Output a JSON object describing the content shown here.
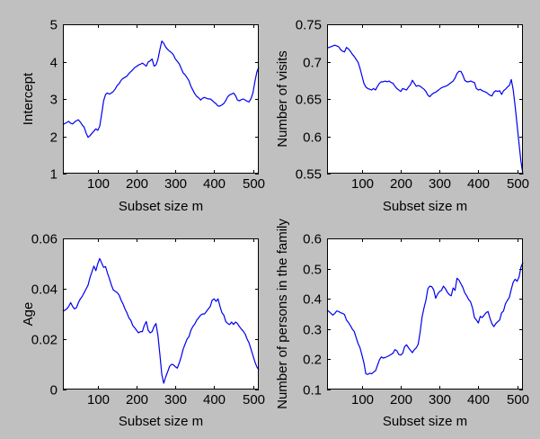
{
  "figure": {
    "background_color": "#c0c0c0",
    "plot_background_color": "#ffffff",
    "axis_color": "#000000",
    "line_color": "#0000ee",
    "text_color": "#000000"
  },
  "chart_data": [
    {
      "id": "intercept",
      "type": "line",
      "title": "",
      "xlabel": "Subset size m",
      "ylabel": "Intercept",
      "xlim": [
        10,
        515
      ],
      "ylim": [
        1,
        5
      ],
      "xticks": [
        100,
        200,
        300,
        400,
        500
      ],
      "xtick_labels": [
        "100",
        "200",
        "300",
        "400",
        "500"
      ],
      "yticks": [
        1,
        2,
        3,
        4,
        5
      ],
      "ytick_labels": [
        "1",
        "2",
        "3",
        "4",
        "5"
      ],
      "grid": false,
      "x": [
        10,
        15,
        20,
        25,
        30,
        35,
        40,
        45,
        50,
        55,
        60,
        65,
        70,
        75,
        80,
        85,
        90,
        95,
        100,
        105,
        110,
        115,
        120,
        125,
        130,
        135,
        140,
        145,
        150,
        155,
        160,
        165,
        170,
        175,
        180,
        185,
        190,
        195,
        200,
        205,
        210,
        215,
        220,
        225,
        230,
        235,
        240,
        245,
        250,
        255,
        260,
        265,
        270,
        275,
        280,
        285,
        290,
        295,
        300,
        305,
        310,
        315,
        320,
        325,
        330,
        335,
        340,
        345,
        350,
        355,
        360,
        365,
        370,
        375,
        380,
        385,
        390,
        395,
        400,
        405,
        410,
        415,
        420,
        425,
        430,
        435,
        440,
        445,
        450,
        455,
        460,
        465,
        470,
        475,
        480,
        485,
        490,
        495,
        500,
        505,
        510,
        515
      ],
      "y": [
        2.32,
        2.34,
        2.37,
        2.4,
        2.35,
        2.33,
        2.38,
        2.42,
        2.44,
        2.38,
        2.3,
        2.24,
        2.08,
        1.97,
        2.02,
        2.08,
        2.14,
        2.2,
        2.16,
        2.27,
        2.6,
        2.95,
        3.12,
        3.16,
        3.13,
        3.16,
        3.2,
        3.27,
        3.36,
        3.41,
        3.5,
        3.55,
        3.58,
        3.61,
        3.68,
        3.73,
        3.78,
        3.84,
        3.87,
        3.91,
        3.93,
        3.96,
        3.92,
        3.88,
        3.99,
        4.02,
        4.07,
        3.88,
        3.91,
        4.06,
        4.32,
        4.55,
        4.49,
        4.39,
        4.33,
        4.28,
        4.24,
        4.18,
        4.07,
        4.01,
        3.94,
        3.82,
        3.7,
        3.65,
        3.57,
        3.49,
        3.34,
        3.24,
        3.14,
        3.07,
        3.03,
        2.97,
        3.02,
        3.04,
        3.02,
        3.0,
        3.0,
        2.96,
        2.91,
        2.87,
        2.81,
        2.81,
        2.84,
        2.88,
        2.96,
        3.06,
        3.11,
        3.13,
        3.16,
        3.09,
        2.97,
        2.95,
        2.98,
        3.0,
        2.97,
        2.94,
        2.92,
        3.01,
        3.16,
        3.46,
        3.72,
        3.85
      ]
    },
    {
      "id": "number-of-visits",
      "type": "line",
      "title": "",
      "xlabel": "Subset size m",
      "ylabel": "Number of visits",
      "xlim": [
        10,
        515
      ],
      "ylim": [
        0.55,
        0.75
      ],
      "xticks": [
        100,
        200,
        300,
        400,
        500
      ],
      "xtick_labels": [
        "100",
        "200",
        "300",
        "400",
        "500"
      ],
      "yticks": [
        0.55,
        0.6,
        0.65,
        0.7,
        0.75
      ],
      "ytick_labels": [
        "0.55",
        "0.6",
        "0.65",
        "0.7",
        "0.75"
      ],
      "grid": false,
      "x": [
        10,
        15,
        20,
        25,
        30,
        35,
        40,
        45,
        50,
        55,
        60,
        65,
        70,
        75,
        80,
        85,
        90,
        95,
        100,
        105,
        110,
        115,
        120,
        125,
        130,
        135,
        140,
        145,
        150,
        155,
        160,
        165,
        170,
        175,
        180,
        185,
        190,
        195,
        200,
        205,
        210,
        215,
        220,
        225,
        230,
        235,
        240,
        245,
        250,
        255,
        260,
        265,
        270,
        275,
        280,
        285,
        290,
        295,
        300,
        305,
        310,
        315,
        320,
        325,
        330,
        335,
        340,
        345,
        350,
        355,
        360,
        365,
        370,
        375,
        380,
        385,
        390,
        395,
        400,
        405,
        410,
        415,
        420,
        425,
        430,
        435,
        440,
        445,
        450,
        455,
        460,
        465,
        470,
        475,
        480,
        485,
        490,
        495,
        500,
        505,
        510,
        515
      ],
      "y": [
        0.718,
        0.719,
        0.72,
        0.721,
        0.722,
        0.721,
        0.72,
        0.716,
        0.714,
        0.713,
        0.719,
        0.717,
        0.714,
        0.71,
        0.707,
        0.703,
        0.699,
        0.691,
        0.681,
        0.671,
        0.666,
        0.664,
        0.663,
        0.662,
        0.664,
        0.662,
        0.667,
        0.671,
        0.673,
        0.673,
        0.674,
        0.673,
        0.674,
        0.672,
        0.671,
        0.667,
        0.664,
        0.662,
        0.66,
        0.664,
        0.663,
        0.662,
        0.666,
        0.669,
        0.675,
        0.671,
        0.667,
        0.668,
        0.667,
        0.665,
        0.663,
        0.66,
        0.655,
        0.653,
        0.656,
        0.658,
        0.659,
        0.661,
        0.663,
        0.665,
        0.666,
        0.667,
        0.668,
        0.67,
        0.672,
        0.674,
        0.678,
        0.684,
        0.687,
        0.687,
        0.682,
        0.675,
        0.673,
        0.673,
        0.674,
        0.673,
        0.672,
        0.664,
        0.662,
        0.663,
        0.661,
        0.66,
        0.659,
        0.657,
        0.655,
        0.654,
        0.659,
        0.661,
        0.66,
        0.661,
        0.656,
        0.661,
        0.663,
        0.666,
        0.668,
        0.676,
        0.662,
        0.64,
        0.615,
        0.59,
        0.566,
        0.549
      ]
    },
    {
      "id": "age",
      "type": "line",
      "title": "",
      "xlabel": "Subset size m",
      "ylabel": "Age",
      "xlim": [
        10,
        515
      ],
      "ylim": [
        0,
        0.06
      ],
      "xticks": [
        100,
        200,
        300,
        400,
        500
      ],
      "xtick_labels": [
        "100",
        "200",
        "300",
        "400",
        "500"
      ],
      "yticks": [
        0,
        0.02,
        0.04,
        0.06
      ],
      "ytick_labels": [
        "0",
        "0.02",
        "0.04",
        "0.06"
      ],
      "grid": false,
      "x": [
        10,
        15,
        20,
        25,
        30,
        35,
        40,
        45,
        50,
        55,
        60,
        65,
        70,
        75,
        80,
        85,
        90,
        95,
        100,
        105,
        110,
        115,
        120,
        125,
        130,
        135,
        140,
        145,
        150,
        155,
        160,
        165,
        170,
        175,
        180,
        185,
        190,
        195,
        200,
        205,
        210,
        215,
        220,
        225,
        230,
        235,
        240,
        245,
        250,
        255,
        260,
        265,
        270,
        275,
        280,
        285,
        290,
        295,
        300,
        305,
        310,
        315,
        320,
        325,
        330,
        335,
        340,
        345,
        350,
        355,
        360,
        365,
        370,
        375,
        380,
        385,
        390,
        395,
        400,
        405,
        410,
        415,
        420,
        425,
        430,
        435,
        440,
        445,
        450,
        455,
        460,
        465,
        470,
        475,
        480,
        485,
        490,
        495,
        500,
        505,
        510,
        515
      ],
      "y": [
        0.031,
        0.0315,
        0.032,
        0.033,
        0.0345,
        0.033,
        0.032,
        0.0325,
        0.0345,
        0.036,
        0.037,
        0.0385,
        0.04,
        0.0415,
        0.0445,
        0.0468,
        0.049,
        0.0472,
        0.05,
        0.052,
        0.0502,
        0.0485,
        0.0488,
        0.0462,
        0.044,
        0.0415,
        0.0395,
        0.039,
        0.0385,
        0.0375,
        0.0355,
        0.034,
        0.032,
        0.0305,
        0.0285,
        0.0275,
        0.0255,
        0.0245,
        0.0235,
        0.0225,
        0.023,
        0.023,
        0.0255,
        0.027,
        0.0235,
        0.0225,
        0.023,
        0.025,
        0.0262,
        0.0215,
        0.014,
        0.006,
        0.0025,
        0.005,
        0.007,
        0.0092,
        0.01,
        0.0098,
        0.009,
        0.0085,
        0.0105,
        0.013,
        0.016,
        0.018,
        0.02,
        0.021,
        0.0235,
        0.025,
        0.026,
        0.0275,
        0.0285,
        0.0295,
        0.03,
        0.03,
        0.031,
        0.032,
        0.033,
        0.0355,
        0.036,
        0.035,
        0.036,
        0.033,
        0.0305,
        0.0295,
        0.027,
        0.0262,
        0.0258,
        0.0268,
        0.0258,
        0.0268,
        0.0262,
        0.025,
        0.024,
        0.0232,
        0.022,
        0.02,
        0.0185,
        0.016,
        0.0135,
        0.011,
        0.009,
        0.0078
      ]
    },
    {
      "id": "number-of-persons-in-the-family",
      "type": "line",
      "title": "",
      "xlabel": "Subset size m",
      "ylabel": "Number of persons in the family",
      "xlim": [
        10,
        515
      ],
      "ylim": [
        0.1,
        0.6
      ],
      "xticks": [
        100,
        200,
        300,
        400,
        500
      ],
      "xtick_labels": [
        "100",
        "200",
        "300",
        "400",
        "500"
      ],
      "yticks": [
        0.1,
        0.2,
        0.3,
        0.4,
        0.5,
        0.6
      ],
      "ytick_labels": [
        "0.1",
        "0.2",
        "0.3",
        "0.4",
        "0.5",
        "0.6"
      ],
      "grid": false,
      "x": [
        10,
        15,
        20,
        25,
        30,
        35,
        40,
        45,
        50,
        55,
        60,
        65,
        70,
        75,
        80,
        85,
        90,
        95,
        100,
        105,
        110,
        115,
        120,
        125,
        130,
        135,
        140,
        145,
        150,
        155,
        160,
        165,
        170,
        175,
        180,
        185,
        190,
        195,
        200,
        205,
        210,
        215,
        220,
        225,
        230,
        235,
        240,
        245,
        250,
        255,
        260,
        265,
        270,
        275,
        280,
        285,
        290,
        295,
        300,
        305,
        310,
        315,
        320,
        325,
        330,
        335,
        340,
        345,
        350,
        355,
        360,
        365,
        370,
        375,
        380,
        385,
        390,
        395,
        400,
        405,
        410,
        415,
        420,
        425,
        430,
        435,
        440,
        445,
        450,
        455,
        460,
        465,
        470,
        475,
        480,
        485,
        490,
        495,
        500,
        505,
        510,
        515
      ],
      "y": [
        0.363,
        0.358,
        0.352,
        0.346,
        0.352,
        0.36,
        0.358,
        0.354,
        0.352,
        0.348,
        0.33,
        0.322,
        0.312,
        0.3,
        0.292,
        0.272,
        0.252,
        0.238,
        0.214,
        0.188,
        0.152,
        0.15,
        0.154,
        0.152,
        0.158,
        0.162,
        0.18,
        0.198,
        0.208,
        0.204,
        0.206,
        0.209,
        0.212,
        0.216,
        0.22,
        0.232,
        0.228,
        0.216,
        0.214,
        0.22,
        0.242,
        0.248,
        0.238,
        0.23,
        0.222,
        0.232,
        0.238,
        0.25,
        0.29,
        0.34,
        0.37,
        0.396,
        0.434,
        0.442,
        0.44,
        0.43,
        0.402,
        0.416,
        0.424,
        0.428,
        0.442,
        0.434,
        0.422,
        0.414,
        0.41,
        0.436,
        0.428,
        0.468,
        0.462,
        0.45,
        0.438,
        0.42,
        0.41,
        0.398,
        0.39,
        0.37,
        0.338,
        0.33,
        0.32,
        0.342,
        0.338,
        0.346,
        0.354,
        0.358,
        0.336,
        0.318,
        0.308,
        0.318,
        0.324,
        0.33,
        0.354,
        0.36,
        0.384,
        0.395,
        0.405,
        0.432,
        0.455,
        0.465,
        0.458,
        0.472,
        0.505,
        0.52
      ]
    }
  ]
}
